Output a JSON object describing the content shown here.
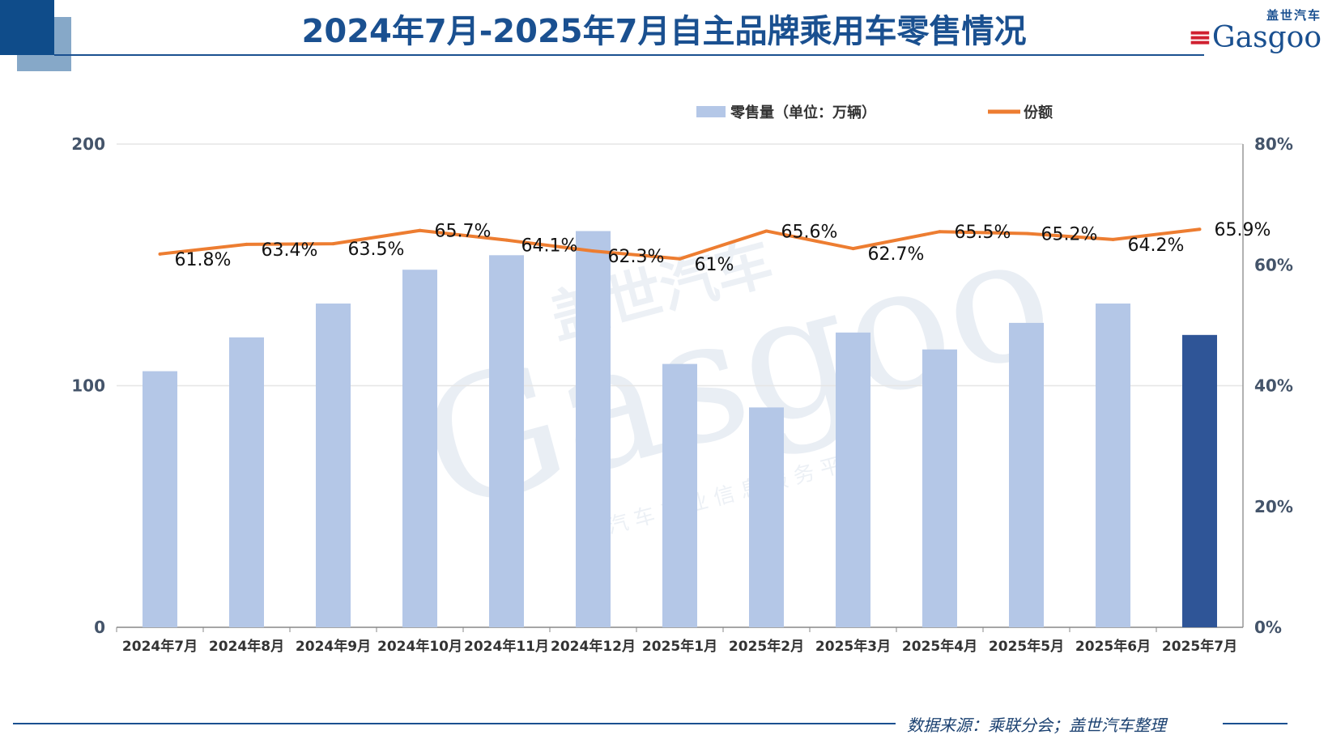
{
  "header": {
    "title": "2024年7月-2025年7月自主品牌乘用车零售情况",
    "logo_cn": "盖世汽车",
    "logo_en": "Gasgoo"
  },
  "source": "数据来源：乘联分会；盖世汽车整理",
  "watermark": {
    "cn": "盖世汽车",
    "en": "Gasgoo",
    "sub": "汽车产业信息服务平台"
  },
  "chart_data": {
    "type": "bar+line",
    "title": "2024年7月-2025年7月自主品牌乘用车零售情况",
    "categories": [
      "2024年7月",
      "2024年8月",
      "2024年9月",
      "2024年10月",
      "2024年11月",
      "2024年12月",
      "2025年1月",
      "2025年2月",
      "2025年3月",
      "2025年4月",
      "2025年5月",
      "2025年6月",
      "2025年7月"
    ],
    "series": [
      {
        "name": "零售量（单位：万辆）",
        "type": "bar",
        "axis": "left",
        "values": [
          106,
          120,
          134,
          148,
          154,
          164,
          109,
          91,
          122,
          115,
          126,
          134,
          121
        ],
        "color": "#b4c7e7",
        "highlight_color": "#2f5597",
        "highlight_index": 12
      },
      {
        "name": "份额",
        "type": "line",
        "axis": "right",
        "values": [
          61.8,
          63.4,
          63.5,
          65.7,
          64.1,
          62.3,
          61,
          65.6,
          62.7,
          65.5,
          65.2,
          64.2,
          65.9
        ],
        "labels": [
          "61.8%",
          "63.4%",
          "63.5%",
          "65.7%",
          "64.1%",
          "62.3%",
          "61%",
          "65.6%",
          "62.7%",
          "65.5%",
          "65.2%",
          "64.2%",
          "65.9%"
        ],
        "color": "#ed7d31"
      }
    ],
    "y_left": {
      "range": [
        0,
        200
      ],
      "ticks": [
        "0",
        "100",
        "200"
      ]
    },
    "y_right": {
      "range": [
        0,
        80
      ],
      "ticks": [
        "0%",
        "20%",
        "40%",
        "60%",
        "80%"
      ]
    },
    "grid": true,
    "legend": "top-right"
  }
}
